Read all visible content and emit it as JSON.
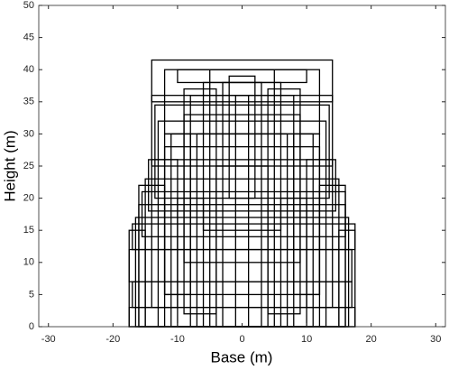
{
  "chart_data": {
    "type": "rectangles",
    "x_label": "Base (m)",
    "y_label": "Height (m)",
    "xlim": [
      -31.5,
      31.5
    ],
    "ylim": [
      0,
      50
    ],
    "xticks": [
      -30,
      -20,
      -10,
      0,
      10,
      20,
      30
    ],
    "yticks": [
      0,
      5,
      10,
      15,
      20,
      25,
      30,
      35,
      40,
      45,
      50
    ],
    "color": "#000000",
    "rects": [
      [
        -17.5,
        17.5,
        0,
        3
      ],
      [
        -17,
        17,
        3,
        7
      ],
      [
        -17.5,
        17,
        7,
        12
      ],
      [
        -17,
        17.5,
        12,
        16
      ],
      [
        -16,
        16,
        0,
        19
      ],
      [
        -15.5,
        16,
        14,
        21
      ],
      [
        -14.5,
        14.5,
        18,
        26
      ],
      [
        -13.5,
        13.5,
        20,
        34.5
      ],
      [
        -14,
        14,
        25,
        36
      ],
      [
        -12,
        12,
        30,
        40
      ],
      [
        -14,
        14,
        35,
        41.5
      ],
      [
        -10,
        10,
        38,
        40
      ],
      [
        -5,
        5,
        0,
        40
      ],
      [
        -3,
        3,
        0,
        38
      ],
      [
        -8,
        8,
        0,
        36
      ],
      [
        -11,
        11,
        0,
        30
      ],
      [
        -12,
        12,
        5,
        28
      ],
      [
        -9,
        9,
        10,
        33
      ],
      [
        -6,
        6,
        15,
        38
      ],
      [
        -2,
        2,
        20,
        39
      ],
      [
        -15,
        15,
        0,
        23
      ],
      [
        -16.5,
        16.5,
        0,
        17
      ],
      [
        -13,
        13,
        0,
        32
      ],
      [
        -7,
        7,
        0,
        30
      ],
      [
        -4,
        4,
        0,
        25
      ],
      [
        -17.5,
        -15,
        0,
        15
      ],
      [
        15,
        17.5,
        0,
        15
      ],
      [
        -10,
        -6,
        0,
        20
      ],
      [
        6,
        10,
        0,
        20
      ],
      [
        -1,
        1,
        0,
        36
      ],
      [
        -12,
        -8,
        5,
        30
      ],
      [
        8,
        12,
        5,
        30
      ],
      [
        -14,
        -10,
        3,
        26
      ],
      [
        10,
        14,
        3,
        26
      ],
      [
        -9,
        -4,
        2,
        37
      ],
      [
        4,
        9,
        2,
        37
      ],
      [
        -16,
        -12,
        0,
        22
      ],
      [
        12,
        16,
        0,
        22
      ]
    ]
  }
}
